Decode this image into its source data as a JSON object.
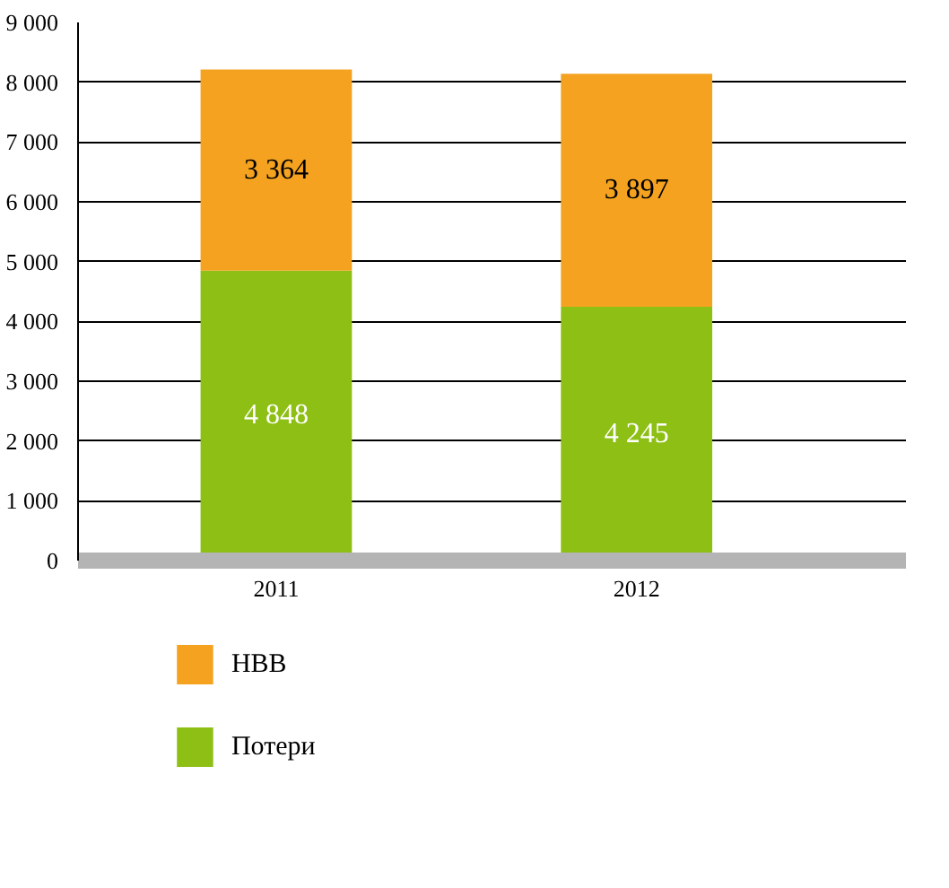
{
  "chart_data": {
    "type": "bar",
    "stacked": true,
    "categories": [
      "2011",
      "2012"
    ],
    "series": [
      {
        "name": "Потери",
        "color": "#8dbf14",
        "values": [
          4848,
          4245
        ],
        "value_labels": [
          "4 848",
          "4 245"
        ]
      },
      {
        "name": "НВВ",
        "color": "#f4a21f",
        "values": [
          3364,
          3897
        ],
        "value_labels": [
          "3 364",
          "3 897"
        ]
      }
    ],
    "ylim": [
      0,
      9000
    ],
    "yticks": [
      0,
      {
        "value": 1000,
        "label": "1 000"
      },
      {
        "value": 2000,
        "label": "2 000"
      },
      {
        "value": 3000,
        "label": "3 000"
      },
      {
        "value": 4000,
        "label": "4 000"
      },
      {
        "value": 5000,
        "label": "5 000"
      },
      {
        "value": 6000,
        "label": "6 000"
      },
      {
        "value": 7000,
        "label": "7 000"
      },
      {
        "value": 8000,
        "label": "8 000"
      },
      {
        "value": 9000,
        "label": "9 000"
      }
    ],
    "grid": "y",
    "legend": "bottom"
  }
}
